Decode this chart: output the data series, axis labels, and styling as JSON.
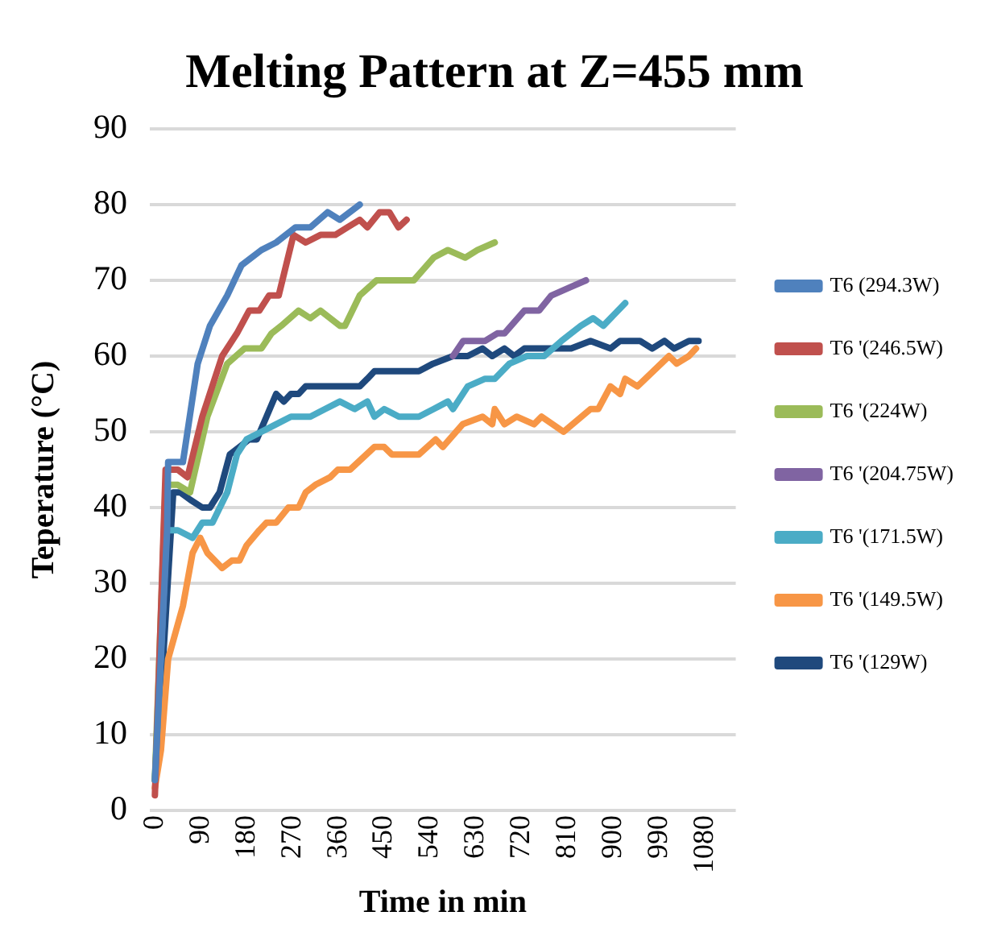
{
  "chart_data": {
    "type": "line",
    "title": "Melting Pattern at Z=455 mm",
    "xlabel": "Time in min",
    "ylabel": "Teperature (°C)",
    "xlim": [
      -10,
      1140
    ],
    "xticks": [
      0,
      90,
      180,
      270,
      360,
      450,
      540,
      630,
      720,
      810,
      900,
      990,
      1080
    ],
    "ylim": [
      0,
      90
    ],
    "yticks": [
      0,
      10,
      20,
      30,
      40,
      50,
      60,
      70,
      80,
      90
    ],
    "grid": "y",
    "legend": "right",
    "marker": "none",
    "line_style": "solid",
    "series": [
      {
        "name": "T6 (294.3W)",
        "color": "#4f81bd",
        "x": [
          0,
          24,
          26,
          55,
          84,
          108,
          142,
          170,
          209,
          238,
          276,
          305,
          339,
          363,
          402
        ],
        "values": [
          4,
          37,
          46,
          46,
          59,
          64,
          68,
          72,
          74,
          75,
          77,
          77,
          79,
          78,
          80
        ]
      },
      {
        "name": "T6 '(246.5W)",
        "color": "#c0504d",
        "x": [
          0,
          21,
          45,
          64,
          93,
          132,
          161,
          185,
          205,
          224,
          243,
          272,
          296,
          325,
          354,
          378,
          402,
          417,
          441,
          460,
          478,
          494
        ],
        "values": [
          2,
          45,
          45,
          44,
          52,
          60,
          63,
          66,
          66,
          68,
          68,
          76,
          75,
          76,
          76,
          77,
          78,
          77,
          79,
          79,
          77,
          78
        ]
      },
      {
        "name": "T6 '(224W)",
        "color": "#9bbb59",
        "x": [
          0,
          21,
          45,
          69,
          103,
          142,
          176,
          209,
          229,
          248,
          282,
          305,
          325,
          363,
          373,
          402,
          435,
          460,
          508,
          547,
          575,
          609,
          633,
          667
        ],
        "values": [
          4,
          43,
          43,
          42,
          52,
          59,
          61,
          61,
          63,
          64,
          66,
          65,
          66,
          64,
          64,
          68,
          70,
          70,
          70,
          73,
          74,
          73,
          74,
          75
        ]
      },
      {
        "name": "T6 '(204.75W)",
        "color": "#8064a2",
        "x": [
          585,
          605,
          648,
          672,
          686,
          725,
          754,
          778,
          812,
          846
        ],
        "values": [
          60,
          62,
          62,
          63,
          63,
          66,
          66,
          68,
          69,
          70
        ]
      },
      {
        "name": "T6 '(171.5W)",
        "color": "#4bacc6",
        "x": [
          0,
          23,
          45,
          74,
          93,
          113,
          142,
          161,
          180,
          209,
          238,
          267,
          305,
          334,
          363,
          392,
          417,
          431,
          450,
          479,
          518,
          547,
          575,
          585,
          614,
          648,
          667,
          696,
          730,
          764,
          798,
          836,
          860,
          880,
          923
        ],
        "values": [
          4,
          37,
          37,
          36,
          38,
          38,
          42,
          47,
          49,
          50,
          51,
          52,
          52,
          53,
          54,
          53,
          54,
          52,
          53,
          52,
          52,
          53,
          54,
          53,
          56,
          57,
          57,
          59,
          60,
          60,
          62,
          64,
          65,
          64,
          67
        ]
      },
      {
        "name": "T6 '(149.5W)",
        "color": "#f79646",
        "x": [
          0,
          12,
          26,
          55,
          74,
          89,
          103,
          132,
          151,
          166,
          180,
          205,
          219,
          238,
          262,
          282,
          296,
          315,
          344,
          359,
          383,
          431,
          450,
          465,
          518,
          551,
          565,
          604,
          643,
          662,
          667,
          686,
          710,
          744,
          759,
          802,
          855,
          870,
          894,
          913,
          923,
          947,
          1009,
          1024,
          1048,
          1062
        ],
        "values": [
          3,
          8,
          20,
          27,
          34,
          36,
          34,
          32,
          33,
          33,
          35,
          37,
          38,
          38,
          40,
          40,
          42,
          43,
          44,
          45,
          45,
          48,
          48,
          47,
          47,
          49,
          48,
          51,
          52,
          51,
          53,
          51,
          52,
          51,
          52,
          50,
          53,
          53,
          56,
          55,
          57,
          56,
          60,
          59,
          60,
          61
        ]
      },
      {
        "name": "T6 '(129W)",
        "color": "#1f497d",
        "x": [
          0,
          17,
          36,
          50,
          70,
          93,
          108,
          127,
          147,
          166,
          185,
          200,
          219,
          238,
          253,
          267,
          282,
          296,
          402,
          417,
          431,
          518,
          546,
          585,
          614,
          643,
          662,
          686,
          705,
          725,
          749,
          778,
          817,
          855,
          894,
          913,
          952,
          976,
          1000,
          1019,
          1048,
          1067
        ],
        "values": [
          4,
          21,
          42,
          42,
          41,
          40,
          40,
          42,
          47,
          48,
          49,
          49,
          52,
          55,
          54,
          55,
          55,
          56,
          56,
          57,
          58,
          58,
          59,
          60,
          60,
          61,
          60,
          61,
          60,
          61,
          61,
          61,
          61,
          62,
          61,
          62,
          62,
          61,
          62,
          61,
          62,
          62
        ]
      }
    ]
  }
}
